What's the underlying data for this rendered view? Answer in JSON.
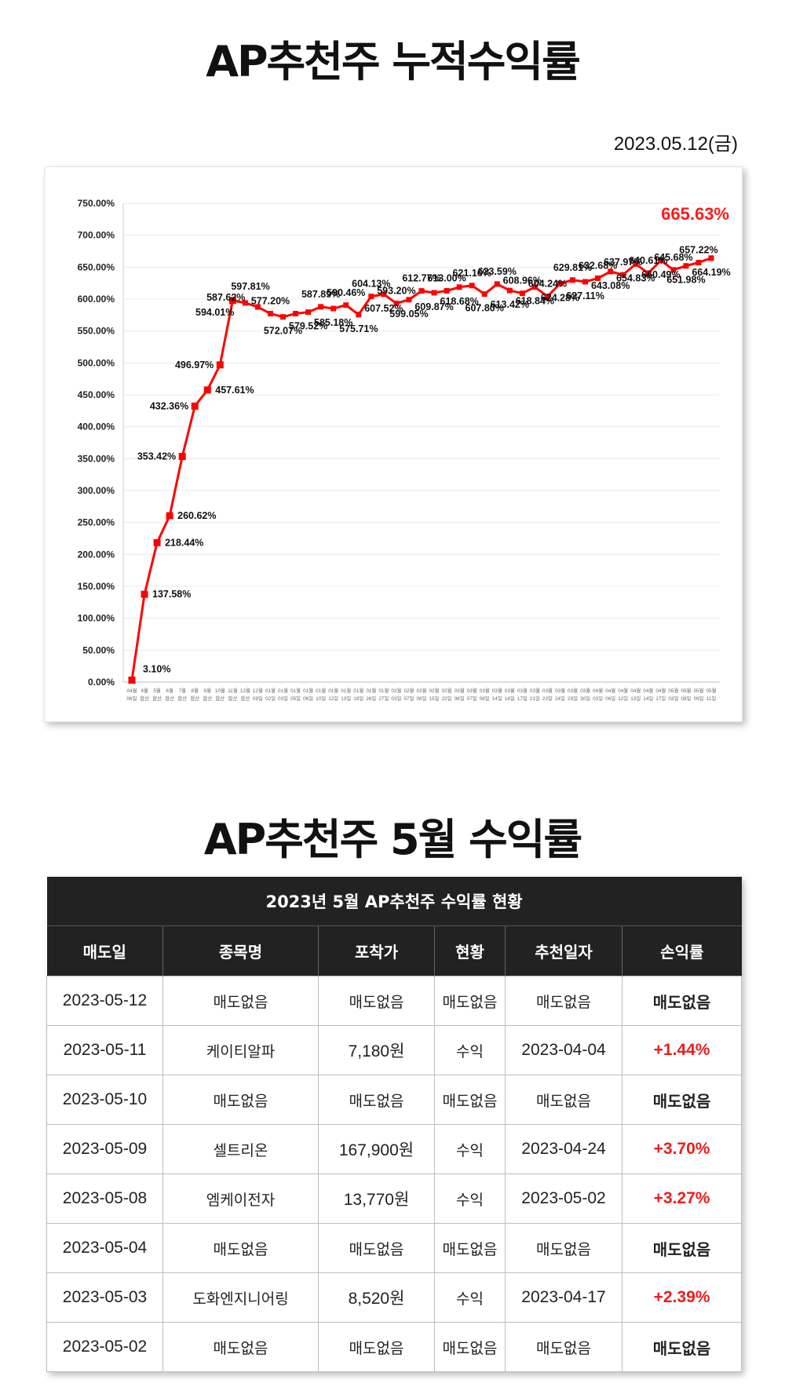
{
  "page": {
    "title": "AP추천주 누적수익률",
    "date": "2023.05.12(금)",
    "table_title": "AP추천주 5월 수익률"
  },
  "chart_data": {
    "type": "line",
    "ylim": [
      0,
      750
    ],
    "yticks": [
      "0.00%",
      "50.00%",
      "100.00%",
      "150.00%",
      "200.00%",
      "250.00%",
      "300.00%",
      "350.00%",
      "400.00%",
      "450.00%",
      "500.00%",
      "550.00%",
      "600.00%",
      "650.00%",
      "700.00%",
      "750.00%"
    ],
    "highlight_label": "665.63%",
    "line_color": "#ff0000",
    "categories": [
      "04월 06일",
      "4월 합산",
      "5월 합산",
      "6월 합산",
      "7월 합산",
      "8월 합산",
      "9월 합산",
      "10월 합산",
      "11월 합산",
      "12월 합산",
      "12월 09일",
      "01월 02일",
      "01월 03일",
      "01월 05일",
      "01월 06일",
      "01월 10일",
      "01월 12일",
      "01월 13일",
      "01월 18일",
      "01월 26일",
      "01월 27일",
      "02월 03일",
      "02월 07일",
      "02월 08일",
      "02월 15일",
      "02월 22일",
      "03월 06일",
      "03월 07일",
      "03월 08일",
      "03월 14일",
      "03월 16일",
      "03월 17일",
      "03월 21일",
      "03월 23일",
      "03월 24일",
      "03월 29일",
      "03월 30일",
      "04월 03일",
      "04월 06일",
      "04월 12일",
      "04월 13일",
      "04월 14일",
      "04월 17일",
      "05월 03일",
      "05월 08일",
      "05월 09일",
      "05월 11일"
    ],
    "values": [
      3.1,
      137.58,
      218.44,
      260.62,
      353.42,
      432.36,
      457.61,
      496.97,
      597.81,
      594.01,
      587.62,
      577.2,
      572.07,
      577.2,
      579.52,
      587.89,
      585.18,
      590.46,
      575.71,
      604.13,
      607.52,
      593.2,
      599.05,
      612.77,
      609.87,
      613.0,
      618.68,
      621.16,
      607.8,
      623.59,
      613.42,
      608.96,
      618.84,
      604.24,
      624.28,
      629.81,
      627.11,
      632.68,
      643.08,
      637.97,
      654.83,
      640.61,
      660.49,
      645.68,
      651.98,
      657.22,
      664.19
    ],
    "labels": [
      "3.10%",
      "137.58%",
      "218.44%",
      "260.62%",
      "353.42%",
      "432.36%",
      "457.61%",
      "496.97%",
      "597.81%",
      "594.01%",
      "587.62%",
      "577.20%",
      "572.07%",
      "",
      "579.52%",
      "587.89%",
      "585.18%",
      "590.46%",
      "575.71%",
      "604.13%",
      "607.52%",
      "593.20%",
      "599.05%",
      "612.77%",
      "609.87%",
      "613.00%",
      "618.68%",
      "621.16%",
      "607.80%",
      "623.59%",
      "613.42%",
      "608.96%",
      "618.84%",
      "604.24%",
      "624.28%",
      "629.81%",
      "627.11%",
      "632.68%",
      "643.08%",
      "637.97%",
      "654.83%",
      "640.61%",
      "660.49%",
      "645.68%",
      "651.98%",
      "657.22%",
      "664.19%"
    ]
  },
  "table": {
    "caption": "2023년 5월 AP추천주 수익률 현황",
    "headers": [
      "매도일",
      "종목명",
      "포착가",
      "현황",
      "추천일자",
      "손익률"
    ],
    "rows": [
      {
        "date": "2023-05-12",
        "name": "매도없음",
        "price": "매도없음",
        "status": "매도없음",
        "rec": "매도없음",
        "ret": "매도없음",
        "pos": false
      },
      {
        "date": "2023-05-11",
        "name": "케이티알파",
        "price": "7,180원",
        "status": "수익",
        "rec": "2023-04-04",
        "ret": "+1.44%",
        "pos": true
      },
      {
        "date": "2023-05-10",
        "name": "매도없음",
        "price": "매도없음",
        "status": "매도없음",
        "rec": "매도없음",
        "ret": "매도없음",
        "pos": false
      },
      {
        "date": "2023-05-09",
        "name": "셀트리온",
        "price": "167,900원",
        "status": "수익",
        "rec": "2023-04-24",
        "ret": "+3.70%",
        "pos": true
      },
      {
        "date": "2023-05-08",
        "name": "엠케이전자",
        "price": "13,770원",
        "status": "수익",
        "rec": "2023-05-02",
        "ret": "+3.27%",
        "pos": true
      },
      {
        "date": "2023-05-04",
        "name": "매도없음",
        "price": "매도없음",
        "status": "매도없음",
        "rec": "매도없음",
        "ret": "매도없음",
        "pos": false
      },
      {
        "date": "2023-05-03",
        "name": "도화엔지니어링",
        "price": "8,520원",
        "status": "수익",
        "rec": "2023-04-17",
        "ret": "+2.39%",
        "pos": true
      },
      {
        "date": "2023-05-02",
        "name": "매도없음",
        "price": "매도없음",
        "status": "매도없음",
        "rec": "매도없음",
        "ret": "매도없음",
        "pos": false
      }
    ]
  }
}
